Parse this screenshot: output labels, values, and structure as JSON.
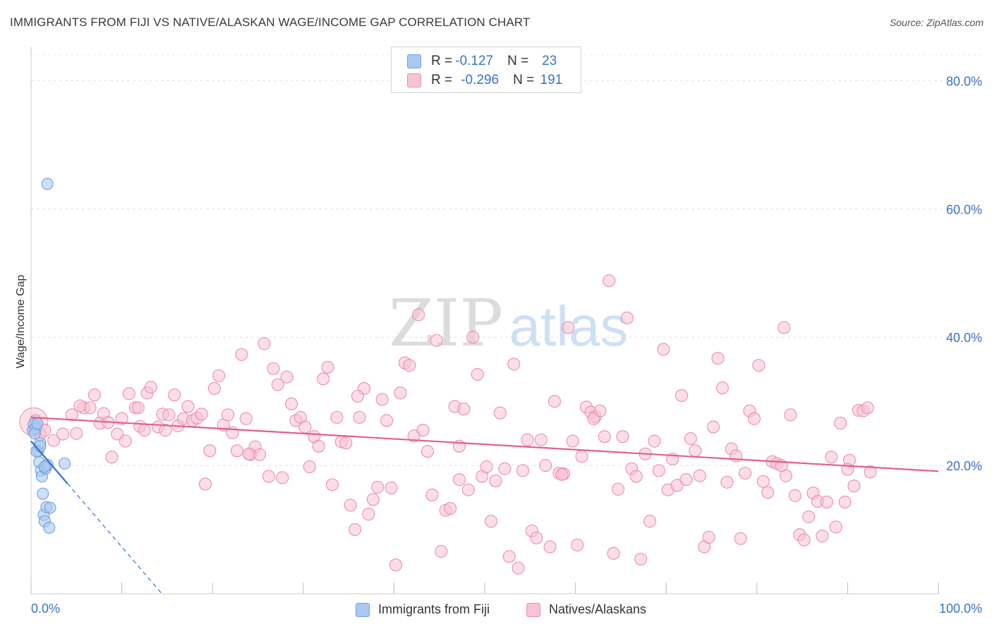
{
  "title": "IMMIGRANTS FROM FIJI VS NATIVE/ALASKAN WAGE/INCOME GAP CORRELATION CHART",
  "source": "Source: ZipAtlas.com",
  "watermark": {
    "zip": "ZIP",
    "atlas": "atlas"
  },
  "legend": {
    "r_label": "R =",
    "n_label": "N =",
    "rows": [
      {
        "r": "-0.127",
        "n": "23",
        "color": "#a9c9f0",
        "border": "#6f9fdc"
      },
      {
        "r": "-0.296",
        "n": "191",
        "color": "#f8c3d3",
        "border": "#ec8eab"
      }
    ]
  },
  "bottom_legend": [
    {
      "label": "Immigrants from Fiji",
      "color": "#a9c9f0",
      "border": "#6f9fdc"
    },
    {
      "label": "Natives/Alaskans",
      "color": "#f8c3d3",
      "border": "#ec8eab"
    }
  ],
  "chart_data": {
    "type": "scatter",
    "title": "IMMIGRANTS FROM FIJI VS NATIVE/ALASKAN WAGE/INCOME GAP CORRELATION CHART",
    "xlabel": "",
    "ylabel": "Wage/Income Gap",
    "xlim": [
      0,
      100
    ],
    "ylim": [
      0,
      84
    ],
    "x_tick_labels": [
      "0.0%",
      "100.0%"
    ],
    "y_ticks": [
      20,
      40,
      60,
      80
    ],
    "y_tick_labels": [
      "20.0%",
      "40.0%",
      "60.0%",
      "80.0%"
    ],
    "grid": true,
    "series": [
      {
        "name": "Immigrants from Fiji",
        "color": "#6f9fdc",
        "fill": "#a9c9f0",
        "trend": {
          "x0": 0,
          "y0": 23.8,
          "x1": 4,
          "y1": 17.2,
          "dash_to_x": 14.5,
          "color": "#2f6fd6"
        },
        "points": [
          [
            0.2,
            25.5
          ],
          [
            0.3,
            26.4
          ],
          [
            0.5,
            25.8
          ],
          [
            0.8,
            22.3
          ],
          [
            0.9,
            20.5
          ],
          [
            1.0,
            23.5
          ],
          [
            1.1,
            19.2
          ],
          [
            1.2,
            18.3
          ],
          [
            1.3,
            15.6
          ],
          [
            1.4,
            12.3
          ],
          [
            1.5,
            11.3
          ],
          [
            1.6,
            19.5
          ],
          [
            1.7,
            13.5
          ],
          [
            1.8,
            20.1
          ],
          [
            2.0,
            10.3
          ],
          [
            2.1,
            13.4
          ],
          [
            3.7,
            20.3
          ],
          [
            1.8,
            63.9
          ],
          [
            0.6,
            22.2
          ],
          [
            1.0,
            23.0
          ],
          [
            0.4,
            25.0
          ],
          [
            0.7,
            26.5
          ],
          [
            1.5,
            19.8
          ]
        ]
      },
      {
        "name": "Natives/Alaskans",
        "color": "#ec8eab",
        "fill": "#f8c3d3",
        "trend": {
          "x0": 0,
          "y0": 27.5,
          "x1": 100,
          "y1": 19.1,
          "color": "#e0608c"
        },
        "points": [
          [
            0.5,
            27.0
          ],
          [
            1.0,
            24.8
          ],
          [
            1.5,
            25.5
          ],
          [
            2.5,
            23.9
          ],
          [
            3.5,
            24.9
          ],
          [
            4.5,
            27.9
          ],
          [
            5.0,
            25.0
          ],
          [
            5.8,
            29.0
          ],
          [
            6.5,
            29.0
          ],
          [
            7.0,
            31.0
          ],
          [
            7.6,
            26.6
          ],
          [
            8.0,
            28.1
          ],
          [
            8.5,
            26.7
          ],
          [
            8.9,
            21.3
          ],
          [
            9.5,
            24.9
          ],
          [
            10.0,
            27.3
          ],
          [
            10.4,
            23.8
          ],
          [
            10.8,
            31.2
          ],
          [
            11.5,
            29.0
          ],
          [
            12.0,
            26.1
          ],
          [
            12.5,
            25.5
          ],
          [
            12.8,
            31.3
          ],
          [
            13.2,
            32.2
          ],
          [
            14.0,
            26.0
          ],
          [
            14.5,
            28.0
          ],
          [
            14.8,
            25.5
          ],
          [
            15.2,
            27.9
          ],
          [
            15.8,
            31.0
          ],
          [
            16.2,
            26.2
          ],
          [
            16.8,
            27.3
          ],
          [
            17.3,
            29.2
          ],
          [
            17.8,
            27.0
          ],
          [
            18.3,
            27.4
          ],
          [
            18.8,
            28.0
          ],
          [
            19.2,
            17.1
          ],
          [
            19.7,
            22.3
          ],
          [
            20.2,
            32.0
          ],
          [
            20.7,
            34.0
          ],
          [
            21.2,
            26.3
          ],
          [
            21.7,
            27.9
          ],
          [
            22.2,
            25.1
          ],
          [
            22.7,
            22.3
          ],
          [
            23.2,
            37.3
          ],
          [
            23.7,
            27.3
          ],
          [
            24.2,
            21.7
          ],
          [
            24.7,
            22.9
          ],
          [
            25.2,
            21.7
          ],
          [
            25.7,
            39.0
          ],
          [
            26.2,
            18.3
          ],
          [
            26.7,
            35.1
          ],
          [
            27.2,
            32.6
          ],
          [
            27.7,
            18.1
          ],
          [
            28.2,
            33.8
          ],
          [
            28.7,
            29.6
          ],
          [
            29.2,
            27.0
          ],
          [
            29.7,
            27.5
          ],
          [
            30.2,
            26.0
          ],
          [
            30.7,
            19.8
          ],
          [
            31.2,
            24.5
          ],
          [
            31.7,
            23.0
          ],
          [
            32.2,
            33.5
          ],
          [
            32.7,
            35.3
          ],
          [
            33.2,
            17.0
          ],
          [
            33.7,
            27.5
          ],
          [
            34.2,
            23.7
          ],
          [
            34.7,
            23.5
          ],
          [
            35.2,
            13.8
          ],
          [
            35.7,
            10.0
          ],
          [
            36.2,
            27.5
          ],
          [
            36.7,
            32.0
          ],
          [
            37.2,
            12.4
          ],
          [
            37.7,
            14.7
          ],
          [
            38.2,
            16.6
          ],
          [
            38.7,
            30.3
          ],
          [
            39.2,
            27.0
          ],
          [
            39.7,
            16.5
          ],
          [
            40.2,
            4.5
          ],
          [
            40.7,
            31.3
          ],
          [
            41.2,
            36.0
          ],
          [
            41.7,
            35.6
          ],
          [
            42.2,
            24.6
          ],
          [
            42.7,
            43.5
          ],
          [
            43.2,
            25.5
          ],
          [
            43.7,
            22.2
          ],
          [
            44.2,
            15.4
          ],
          [
            44.7,
            39.5
          ],
          [
            45.2,
            6.6
          ],
          [
            45.7,
            13.0
          ],
          [
            46.2,
            13.3
          ],
          [
            46.7,
            29.2
          ],
          [
            47.2,
            17.8
          ],
          [
            47.7,
            28.8
          ],
          [
            48.2,
            16.2
          ],
          [
            48.7,
            40.0
          ],
          [
            49.2,
            34.2
          ],
          [
            49.7,
            18.3
          ],
          [
            50.2,
            19.8
          ],
          [
            50.7,
            11.3
          ],
          [
            51.2,
            17.6
          ],
          [
            51.7,
            28.2
          ],
          [
            52.2,
            19.5
          ],
          [
            52.7,
            5.8
          ],
          [
            53.2,
            35.8
          ],
          [
            53.7,
            4.0
          ],
          [
            54.2,
            19.2
          ],
          [
            54.7,
            24.0
          ],
          [
            55.2,
            9.8
          ],
          [
            55.7,
            8.7
          ],
          [
            56.2,
            24.0
          ],
          [
            56.7,
            20.0
          ],
          [
            57.2,
            7.3
          ],
          [
            57.7,
            30.0
          ],
          [
            58.2,
            18.8
          ],
          [
            58.7,
            18.7
          ],
          [
            59.2,
            41.5
          ],
          [
            59.7,
            23.8
          ],
          [
            60.2,
            7.6
          ],
          [
            60.7,
            21.4
          ],
          [
            61.2,
            29.1
          ],
          [
            61.7,
            28.3
          ],
          [
            62.2,
            27.6
          ],
          [
            62.7,
            28.5
          ],
          [
            63.2,
            24.5
          ],
          [
            63.7,
            48.8
          ],
          [
            64.2,
            6.3
          ],
          [
            64.7,
            16.3
          ],
          [
            65.2,
            24.5
          ],
          [
            65.7,
            43.0
          ],
          [
            66.2,
            19.5
          ],
          [
            66.7,
            18.3
          ],
          [
            67.2,
            5.4
          ],
          [
            67.7,
            21.8
          ],
          [
            68.2,
            11.3
          ],
          [
            68.7,
            23.8
          ],
          [
            69.2,
            19.2
          ],
          [
            69.7,
            38.1
          ],
          [
            70.2,
            16.2
          ],
          [
            70.7,
            21.0
          ],
          [
            71.2,
            16.9
          ],
          [
            71.7,
            30.9
          ],
          [
            72.2,
            17.8
          ],
          [
            72.7,
            24.2
          ],
          [
            73.2,
            22.3
          ],
          [
            73.7,
            18.4
          ],
          [
            74.2,
            7.3
          ],
          [
            74.7,
            8.8
          ],
          [
            75.2,
            26.0
          ],
          [
            75.7,
            36.7
          ],
          [
            76.2,
            32.1
          ],
          [
            76.7,
            17.4
          ],
          [
            77.2,
            22.6
          ],
          [
            77.7,
            21.5
          ],
          [
            78.2,
            8.6
          ],
          [
            78.7,
            18.8
          ],
          [
            79.2,
            28.5
          ],
          [
            79.7,
            27.3
          ],
          [
            80.2,
            35.6
          ],
          [
            80.7,
            17.5
          ],
          [
            81.2,
            15.8
          ],
          [
            81.7,
            20.6
          ],
          [
            82.2,
            20.3
          ],
          [
            82.7,
            20.0
          ],
          [
            83.2,
            18.4
          ],
          [
            83.7,
            27.9
          ],
          [
            84.2,
            15.3
          ],
          [
            84.7,
            9.2
          ],
          [
            85.2,
            8.4
          ],
          [
            85.7,
            12.0
          ],
          [
            86.2,
            15.7
          ],
          [
            86.7,
            14.4
          ],
          [
            87.2,
            9.0
          ],
          [
            87.7,
            14.3
          ],
          [
            88.2,
            21.3
          ],
          [
            88.7,
            10.4
          ],
          [
            89.2,
            26.6
          ],
          [
            89.7,
            14.3
          ],
          [
            90.2,
            20.8
          ],
          [
            90.7,
            16.8
          ],
          [
            91.2,
            28.6
          ],
          [
            91.7,
            28.5
          ],
          [
            92.2,
            29.0
          ],
          [
            62.0,
            27.3
          ],
          [
            58.5,
            18.6
          ],
          [
            47.2,
            23.0
          ],
          [
            24.0,
            21.8
          ],
          [
            11.8,
            29.0
          ],
          [
            5.4,
            29.3
          ],
          [
            36.0,
            30.8
          ],
          [
            83.0,
            41.5
          ],
          [
            90.0,
            19.4
          ],
          [
            92.5,
            19.0
          ]
        ]
      }
    ]
  }
}
